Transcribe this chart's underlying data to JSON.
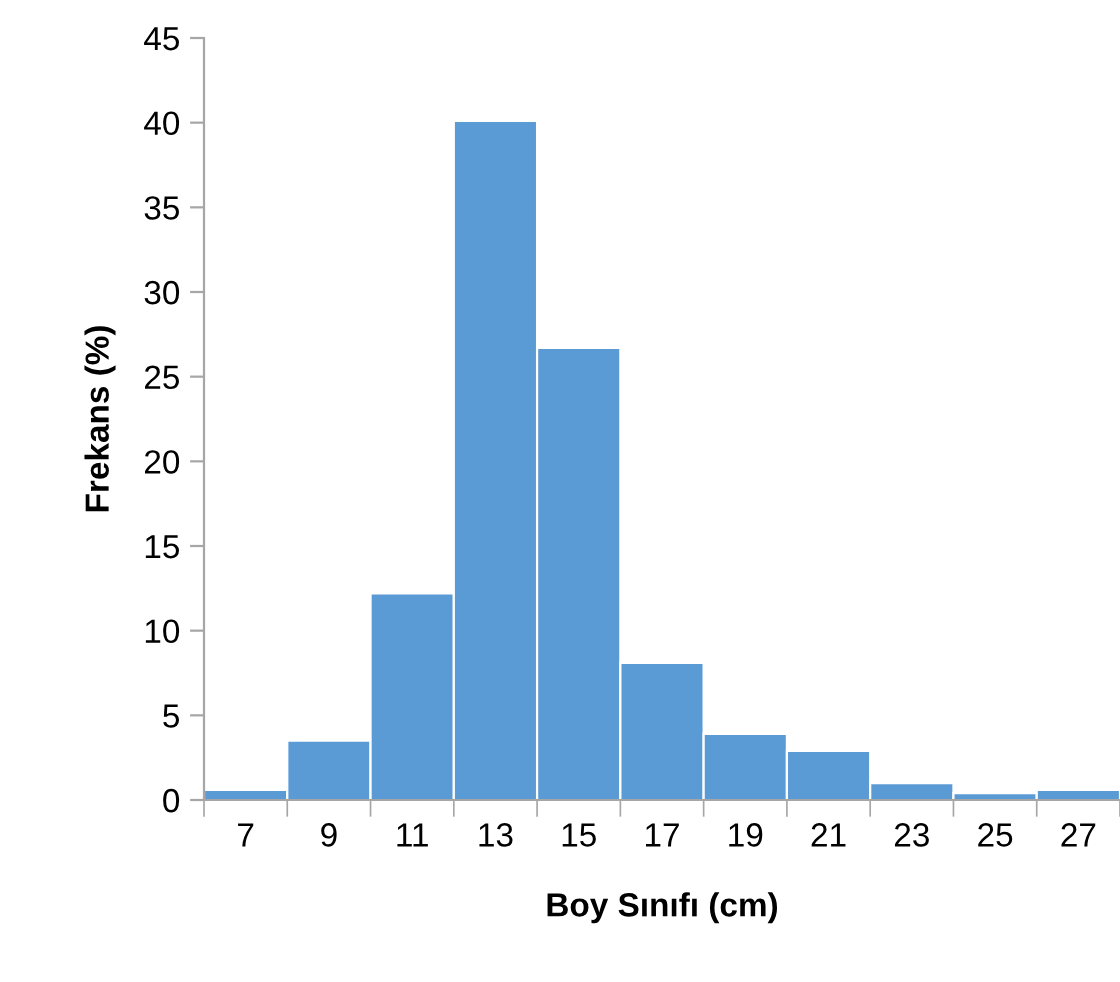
{
  "chart_data": {
    "type": "bar",
    "xlabel": "Boy Sınıfı (cm)",
    "ylabel": "Frekans (%)",
    "categories": [
      "7",
      "9",
      "11",
      "13",
      "15",
      "17",
      "19",
      "21",
      "23",
      "25",
      "27"
    ],
    "values": [
      0.6,
      3.5,
      12.2,
      40.1,
      26.7,
      8.1,
      3.9,
      2.9,
      1.0,
      0.4,
      0.6
    ],
    "color": "#5b9bd5",
    "ylim": [
      0,
      45
    ],
    "yticks": [
      0,
      5,
      10,
      15,
      20,
      25,
      30,
      35,
      40,
      45
    ],
    "grid": false
  }
}
